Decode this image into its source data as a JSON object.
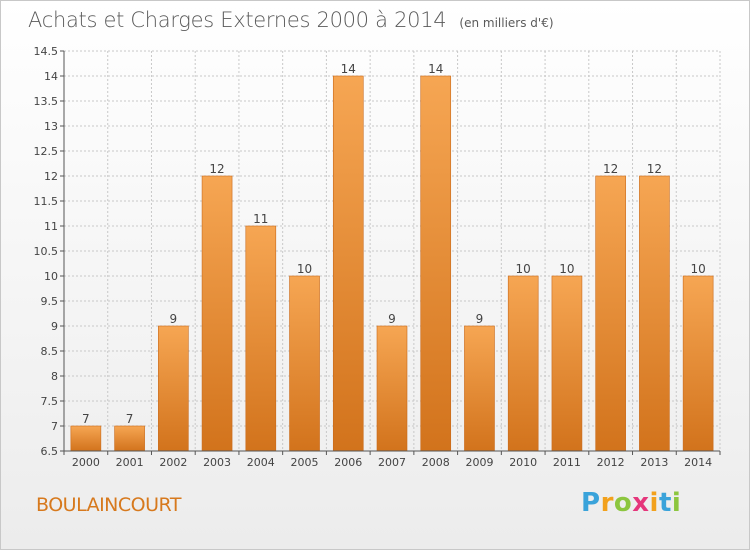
{
  "header": {
    "title": "Achats et Charges Externes 2000 à 2014",
    "unit": "(en milliers d'€)"
  },
  "footer": {
    "place": "BOULAINCOURT",
    "logo_letters": [
      "P",
      "r",
      "o",
      "x",
      "i",
      "t",
      "i"
    ],
    "logo_colors": [
      "#3aa3da",
      "#f2a11c",
      "#8cc63f",
      "#e5367b",
      "#f2a11c",
      "#3aa3da",
      "#8cc63f"
    ]
  },
  "chart_data": {
    "type": "bar",
    "title": "Achats et Charges Externes 2000 à 2014",
    "subtitle": "(en milliers d'€)",
    "categories": [
      "2000",
      "2001",
      "2002",
      "2003",
      "2004",
      "2005",
      "2006",
      "2007",
      "2008",
      "2009",
      "2010",
      "2011",
      "2012",
      "2013",
      "2014"
    ],
    "values": [
      7,
      7,
      9,
      12,
      11,
      10,
      14,
      9,
      14,
      9,
      10,
      10,
      12,
      12,
      10
    ],
    "ylim": [
      6.5,
      14.5
    ],
    "yticks": [
      "6.5",
      "7",
      "7.5",
      "8",
      "8.5",
      "9",
      "9.5",
      "10",
      "10.5",
      "11",
      "11.5",
      "12",
      "12.5",
      "13",
      "13.5",
      "14",
      "14.5"
    ],
    "grid": true,
    "colors": {
      "bar_top": "#f6a653",
      "bar_bottom": "#d2731c",
      "bar_edge": "#c9691a",
      "grid": "#c8c8c8",
      "axis": "#555555",
      "text": "#444444"
    }
  }
}
